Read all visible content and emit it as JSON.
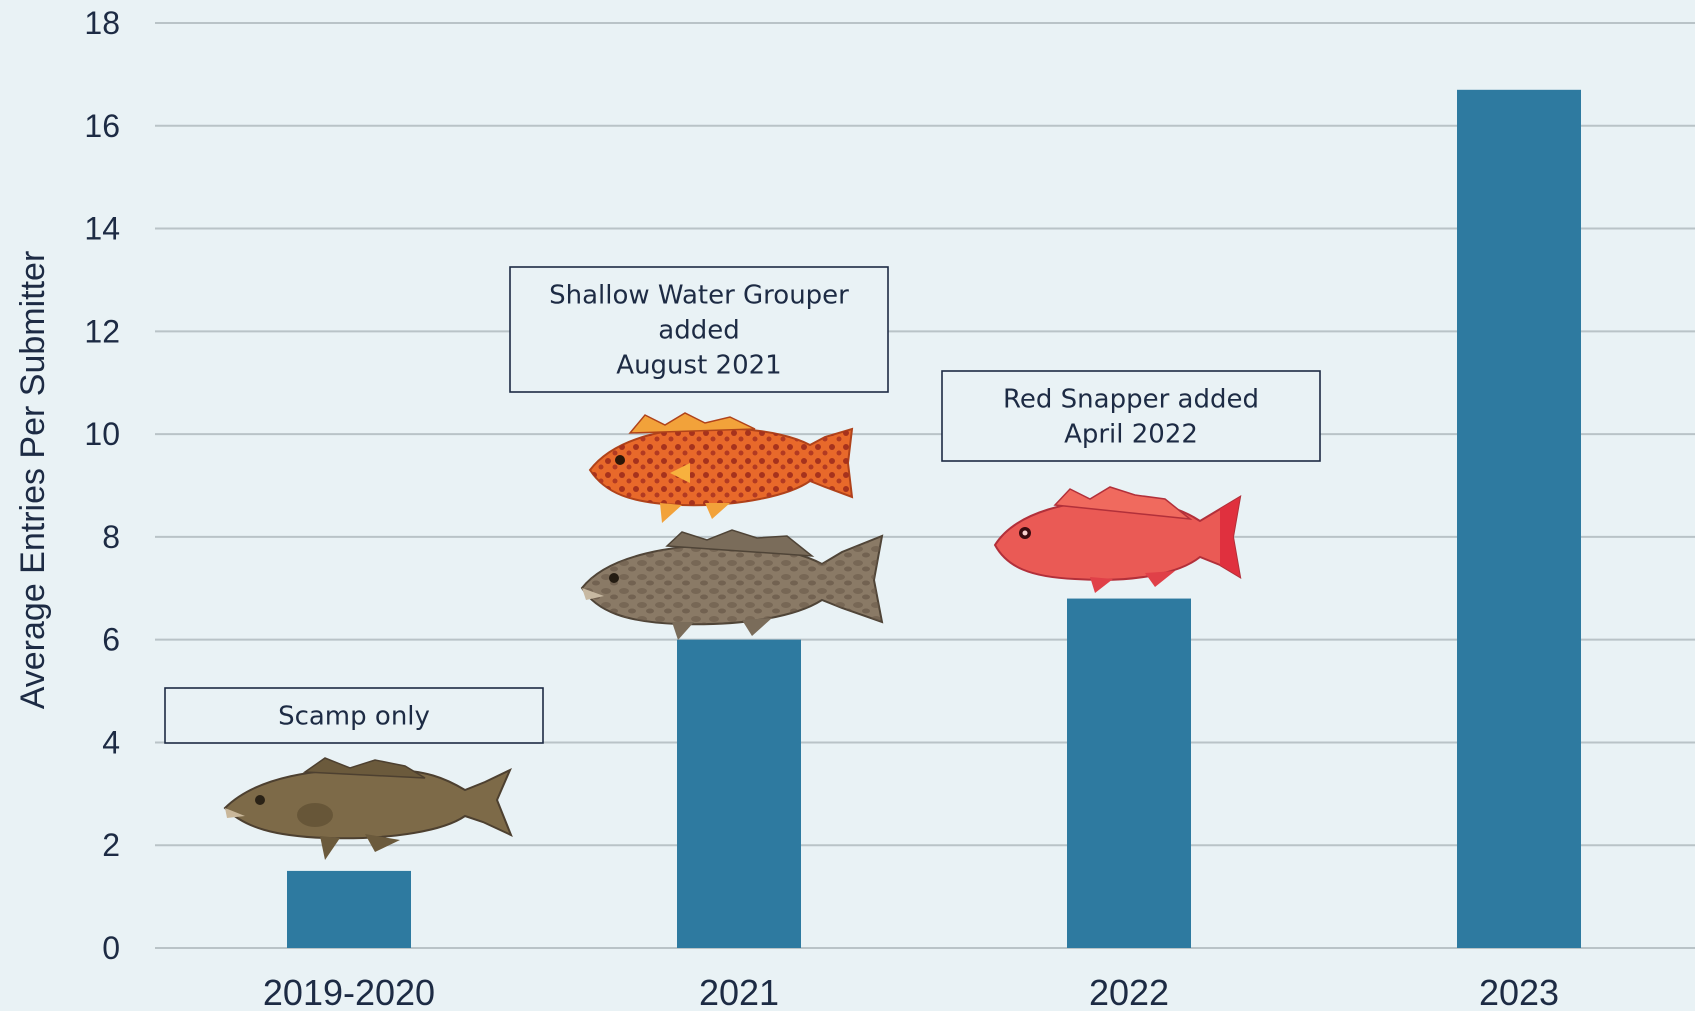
{
  "chart_data": {
    "type": "bar",
    "categories": [
      "2019-2020",
      "2021",
      "2022",
      "2023"
    ],
    "values": [
      1.5,
      6.0,
      6.8,
      16.7
    ],
    "title": "",
    "xlabel": "",
    "ylabel": "Average Entries Per Submitter",
    "ylim": [
      0,
      18
    ],
    "yticks": [
      0,
      2,
      4,
      6,
      8,
      10,
      12,
      14,
      16,
      18
    ],
    "grid": true,
    "bar_color": "#2e7aa0",
    "annotations": [
      {
        "category": "2019-2020",
        "lines": [
          "Scamp only"
        ]
      },
      {
        "category": "2021",
        "lines": [
          "Shallow Water Grouper",
          "added",
          "August 2021"
        ]
      },
      {
        "category": "2022",
        "lines": [
          "Red Snapper added",
          "April 2022"
        ]
      }
    ]
  },
  "illustrations": [
    {
      "category": "2019-2020",
      "name": "scamp-fish-icon",
      "color": "#7d6a48"
    },
    {
      "category": "2021",
      "name": "red-grouper-fish-icon",
      "color": "#e0622a"
    },
    {
      "category": "2021",
      "name": "gag-grouper-fish-icon",
      "color": "#8a7a66"
    },
    {
      "category": "2022",
      "name": "red-snapper-fish-icon",
      "color": "#e5504a"
    }
  ]
}
